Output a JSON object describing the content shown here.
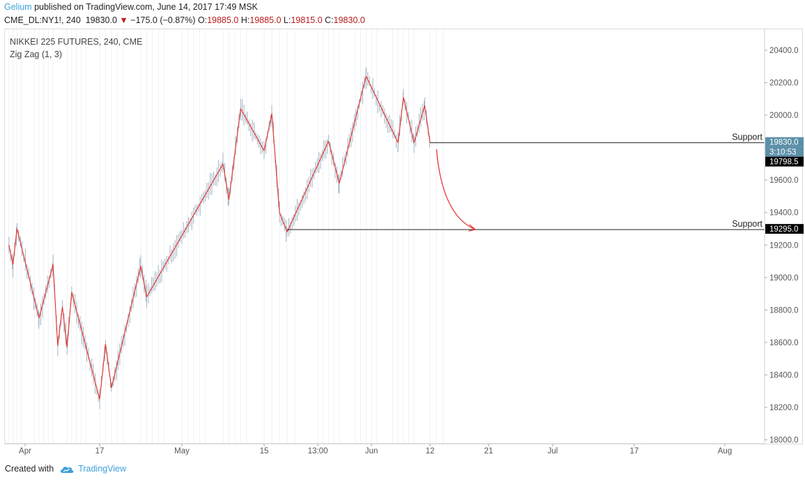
{
  "header": {
    "author": "Gelium",
    "published": " published on TradingView.com, June 14, 2017 17:49 MSK"
  },
  "quote": {
    "symbol": "CME_DL:NY1!, 240",
    "last": "19830.0",
    "change": "−175.0 (−0.87%)",
    "o_label": "O:",
    "o": "19885.0",
    "h_label": "H:",
    "h": "19885.0",
    "l_label": "L:",
    "l": "19815.0",
    "c_label": "C:",
    "c": "19830.0"
  },
  "legend": {
    "title": "NIKKEI 225 FUTURES, 240, CME",
    "indicator": "Zig Zag (1, 3)"
  },
  "footer": {
    "created_with": "Created with",
    "brand": "TradingView"
  },
  "colors": {
    "zigzag": "#e53935",
    "bars": "#9fb3c3",
    "grid": "#eef1f4",
    "support_line": "#222222",
    "price_tag": "#5b8fa8",
    "label_black": "#000000",
    "arrow": "#e53935"
  },
  "chart_data": {
    "type": "line",
    "title": "NIKKEI 225 FUTURES, 240, CME",
    "ylim": [
      18000,
      20500
    ],
    "yticks": [
      18000,
      18200,
      18400,
      18600,
      18800,
      19000,
      19200,
      19400,
      19600,
      19800,
      20000,
      20200,
      20400
    ],
    "ytick_labels": [
      "18000.0",
      "18200.0",
      "18400.0",
      "18600.0",
      "18800.0",
      "19000.0",
      "19200.0",
      "19400.0",
      "19600.0",
      "19800.0",
      "20000.0",
      "20200.0",
      "20400.0"
    ],
    "x_tick_labels": [
      "Apr",
      "17",
      "May",
      "15",
      "13:00",
      "Jun",
      "12",
      "21",
      "Jul",
      "17",
      "Aug"
    ],
    "x_tick_dates": [
      "2017-04-01",
      "2017-04-17",
      "2017-05-01",
      "2017-05-15",
      "2017-05-22",
      "2017-06-01",
      "2017-06-12",
      "2017-06-21",
      "2017-07-01",
      "2017-07-17",
      "2017-08-01"
    ],
    "zigzag": {
      "name": "Zig Zag (1, 3)",
      "points": [
        [
          "2017-03-28",
          19200
        ],
        [
          "2017-03-29",
          19080
        ],
        [
          "2017-03-30",
          19300
        ],
        [
          "2017-04-04",
          18750
        ],
        [
          "2017-04-07",
          19080
        ],
        [
          "2017-04-08",
          18580
        ],
        [
          "2017-04-09",
          18820
        ],
        [
          "2017-04-10",
          18570
        ],
        [
          "2017-04-11",
          18910
        ],
        [
          "2017-04-17",
          18250
        ],
        [
          "2017-04-18",
          18590
        ],
        [
          "2017-04-19",
          18320
        ],
        [
          "2017-04-24",
          19070
        ],
        [
          "2017-04-25",
          18880
        ],
        [
          "2017-05-08",
          19700
        ],
        [
          "2017-05-09",
          19480
        ],
        [
          "2017-05-11",
          20040
        ],
        [
          "2017-05-15",
          19780
        ],
        [
          "2017-05-16",
          20010
        ],
        [
          "2017-05-17",
          19400
        ],
        [
          "2017-05-18",
          19280
        ],
        [
          "2017-05-24",
          19840
        ],
        [
          "2017-05-26",
          19580
        ],
        [
          "2017-05-31",
          20240
        ],
        [
          "2017-06-06",
          19830
        ],
        [
          "2017-06-07",
          20110
        ],
        [
          "2017-06-09",
          19830
        ],
        [
          "2017-06-11",
          20060
        ],
        [
          "2017-06-12",
          19830
        ]
      ]
    },
    "support_levels": [
      {
        "label": "Support",
        "value": 19830,
        "start": "2017-06-12"
      },
      {
        "label": "Support",
        "value": 19295,
        "start": "2017-05-18"
      }
    ],
    "price_tags": [
      {
        "text": "19830.0",
        "value": 19830
      },
      {
        "text": "3:10:53",
        "value": 19790
      },
      {
        "text": "19798.5",
        "value": 19798.5
      },
      {
        "text": "19295.0",
        "value": 19295
      }
    ],
    "arrow": {
      "from_date": "2017-06-13",
      "from_value": 19790,
      "to_date": "2017-06-19",
      "to_value": 19295
    }
  }
}
